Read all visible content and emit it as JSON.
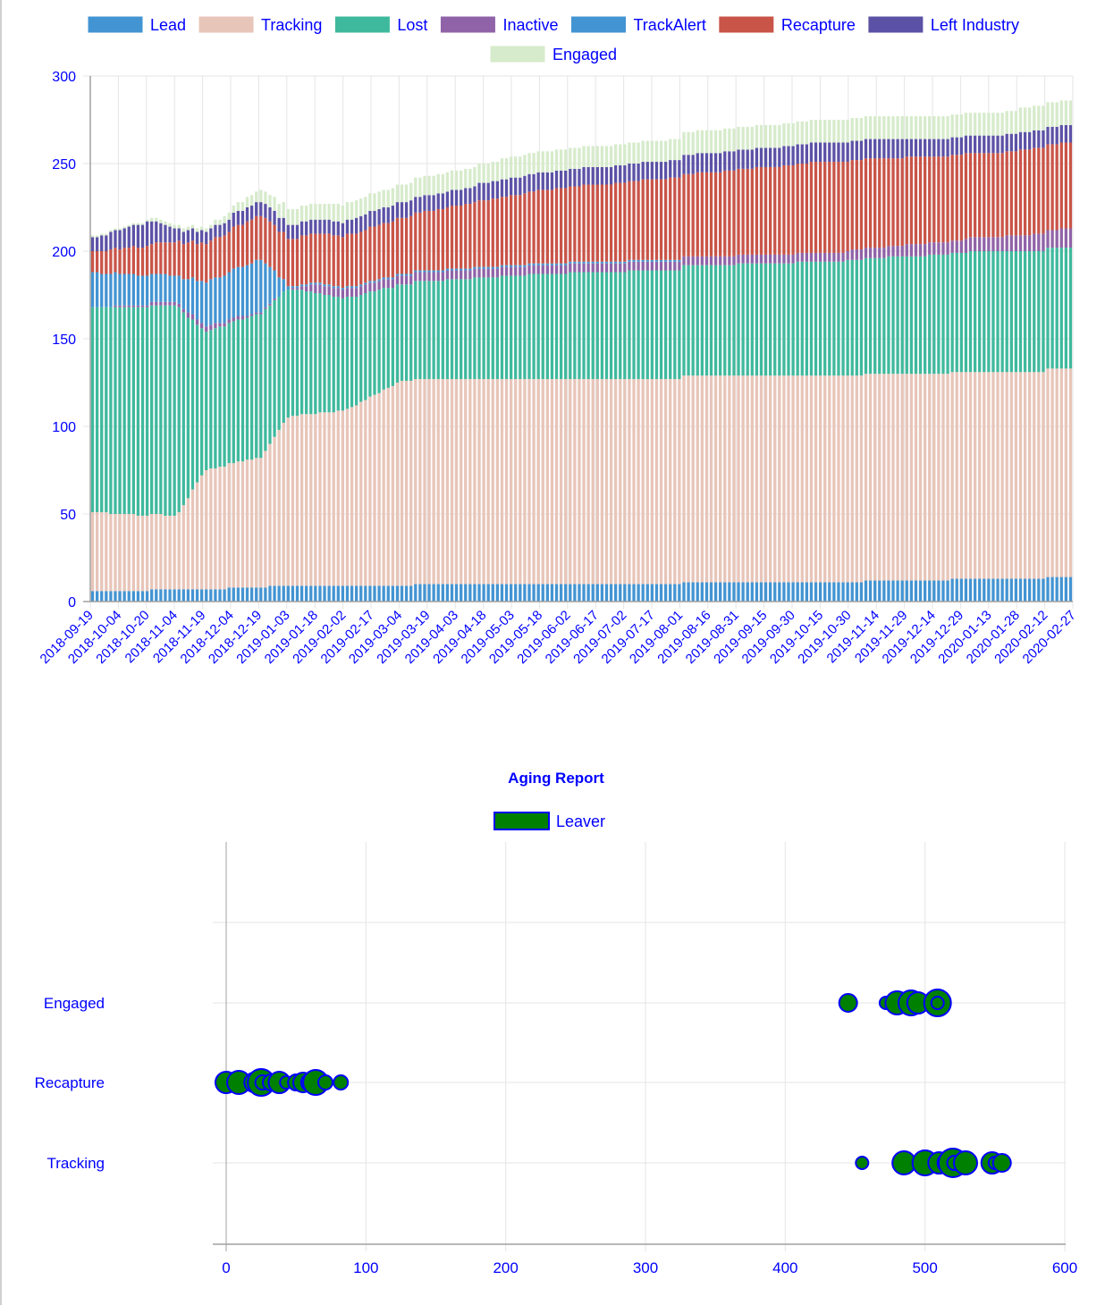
{
  "colors": {
    "text": "#0000ff",
    "grid": "#e5e5e5",
    "axis": "#a0a0a0",
    "bubble_fill": "#008000",
    "bubble_stroke": "#0000ff"
  },
  "chart_data": [
    {
      "type": "bar",
      "stacked": true,
      "legend_position": "top",
      "grid": true,
      "ylim": [
        0,
        300
      ],
      "yticks": [
        0,
        50,
        100,
        150,
        200,
        250,
        300
      ],
      "start_date": "2018-09-19",
      "x_tick_labels": [
        "2018-09-19",
        "2018-10-04",
        "2018-10-20",
        "2018-11-04",
        "2018-11-19",
        "2018-12-04",
        "2018-12-19",
        "2019-01-03",
        "2019-01-18",
        "2019-02-02",
        "2019-02-17",
        "2019-03-04",
        "2019-03-19",
        "2019-04-03",
        "2019-04-18",
        "2019-05-03",
        "2019-05-18",
        "2019-06-02",
        "2019-06-17",
        "2019-07-02",
        "2019-07-17",
        "2019-08-01",
        "2019-08-16",
        "2019-08-31",
        "2019-09-15",
        "2019-09-30",
        "2019-10-15",
        "2019-10-30",
        "2019-11-14",
        "2019-11-29",
        "2019-12-14",
        "2019-12-29",
        "2020-01-13",
        "2020-01-28",
        "2020-02-12",
        "2020-02-27"
      ],
      "series": [
        {
          "name": "Lead",
          "color": "#4394d2",
          "steps": [
            [
              0,
              6
            ],
            [
              4,
              7
            ],
            [
              7,
              9
            ],
            [
              16,
              10
            ],
            [
              26,
              11
            ],
            [
              32,
              13
            ],
            [
              36,
              14
            ]
          ]
        },
        {
          "name": "Tracking",
          "color": "#e8c5b9",
          "steps": [
            [
              0,
              45
            ],
            [
              3,
              42
            ],
            [
              4,
              68
            ],
            [
              6,
              74
            ],
            [
              7,
              97
            ],
            [
              9,
              100
            ],
            [
              11,
              117
            ],
            [
              16,
              117
            ],
            [
              26,
              118
            ],
            [
              32,
              118
            ],
            [
              36,
              119
            ]
          ]
        },
        {
          "name": "Lost",
          "color": "#3fb99d",
          "steps": [
            [
              0,
              117
            ],
            [
              3,
              120
            ],
            [
              4,
              79
            ],
            [
              6,
              82
            ],
            [
              7,
              73
            ],
            [
              11,
              55
            ],
            [
              16,
              60
            ],
            [
              26,
              65
            ],
            [
              32,
              69
            ],
            [
              36,
              69
            ]
          ]
        },
        {
          "name": "Inactive",
          "color": "#9063a8",
          "steps": [
            [
              0,
              0
            ],
            [
              4,
              3
            ],
            [
              7,
              0
            ],
            [
              8,
              5
            ],
            [
              16,
              5
            ],
            [
              26,
              5
            ],
            [
              32,
              8
            ],
            [
              36,
              12
            ]
          ]
        },
        {
          "name": "TrackAlert",
          "color": "#4394d2",
          "steps": [
            [
              0,
              20
            ],
            [
              3,
              15
            ],
            [
              4,
              25
            ],
            [
              6,
              30
            ],
            [
              7,
              1
            ],
            [
              16,
              1
            ],
            [
              26,
              0
            ]
          ]
        },
        {
          "name": "Recapture",
          "color": "#c95448",
          "steps": [
            [
              0,
              12
            ],
            [
              4,
              22
            ],
            [
              7,
              27
            ],
            [
              11,
              32
            ],
            [
              16,
              42
            ],
            [
              26,
              52
            ],
            [
              32,
              48
            ],
            [
              36,
              50
            ]
          ]
        },
        {
          "name": "Left Industry",
          "color": "#5b52a6",
          "steps": [
            [
              0,
              8
            ],
            [
              2,
              14
            ],
            [
              3,
              7
            ],
            [
              7,
              8
            ],
            [
              16,
              10
            ],
            [
              26,
              11
            ],
            [
              32,
              10
            ]
          ]
        },
        {
          "name": "Engaged",
          "color": "#d6ebcb",
          "steps": [
            [
              0,
              1
            ],
            [
              4,
              2
            ],
            [
              7,
              9
            ],
            [
              16,
              12
            ],
            [
              26,
              13
            ],
            [
              32,
              13
            ],
            [
              36,
              15
            ]
          ]
        }
      ]
    },
    {
      "type": "bubble",
      "title": "Aging Report",
      "legend_position": "top",
      "grid": true,
      "xlim": [
        -10,
        600
      ],
      "xticks": [
        0,
        100,
        200,
        300,
        400,
        500,
        600
      ],
      "categories": [
        "Engaged",
        "Recapture",
        "Tracking"
      ],
      "series": [
        {
          "name": "Leaver",
          "points": [
            {
              "x": 445,
              "y": "Engaged",
              "r": 10
            },
            {
              "x": 472,
              "y": "Engaged",
              "r": 7
            },
            {
              "x": 480,
              "y": "Engaged",
              "r": 13
            },
            {
              "x": 490,
              "y": "Engaged",
              "r": 14
            },
            {
              "x": 495,
              "y": "Engaged",
              "r": 12
            },
            {
              "x": 509,
              "y": "Engaged",
              "r": 15
            },
            {
              "x": 509,
              "y": "Engaged",
              "r": 7
            },
            {
              "x": 0,
              "y": "Recapture",
              "r": 12
            },
            {
              "x": 9,
              "y": "Recapture",
              "r": 13
            },
            {
              "x": 20,
              "y": "Recapture",
              "r": 11
            },
            {
              "x": 25,
              "y": "Recapture",
              "r": 15
            },
            {
              "x": 26,
              "y": "Recapture",
              "r": 8
            },
            {
              "x": 32,
              "y": "Recapture",
              "r": 9
            },
            {
              "x": 38,
              "y": "Recapture",
              "r": 12
            },
            {
              "x": 43,
              "y": "Recapture",
              "r": 7
            },
            {
              "x": 50,
              "y": "Recapture",
              "r": 9
            },
            {
              "x": 55,
              "y": "Recapture",
              "r": 11
            },
            {
              "x": 60,
              "y": "Recapture",
              "r": 10
            },
            {
              "x": 64,
              "y": "Recapture",
              "r": 14
            },
            {
              "x": 71,
              "y": "Recapture",
              "r": 8
            },
            {
              "x": 82,
              "y": "Recapture",
              "r": 8
            },
            {
              "x": 455,
              "y": "Tracking",
              "r": 7
            },
            {
              "x": 485,
              "y": "Tracking",
              "r": 13
            },
            {
              "x": 500,
              "y": "Tracking",
              "r": 14
            },
            {
              "x": 510,
              "y": "Tracking",
              "r": 12
            },
            {
              "x": 516,
              "y": "Tracking",
              "r": 11
            },
            {
              "x": 520,
              "y": "Tracking",
              "r": 16
            },
            {
              "x": 521,
              "y": "Tracking",
              "r": 8
            },
            {
              "x": 529,
              "y": "Tracking",
              "r": 13
            },
            {
              "x": 548,
              "y": "Tracking",
              "r": 12
            },
            {
              "x": 550,
              "y": "Tracking",
              "r": 7
            },
            {
              "x": 555,
              "y": "Tracking",
              "r": 10
            }
          ]
        }
      ]
    }
  ]
}
